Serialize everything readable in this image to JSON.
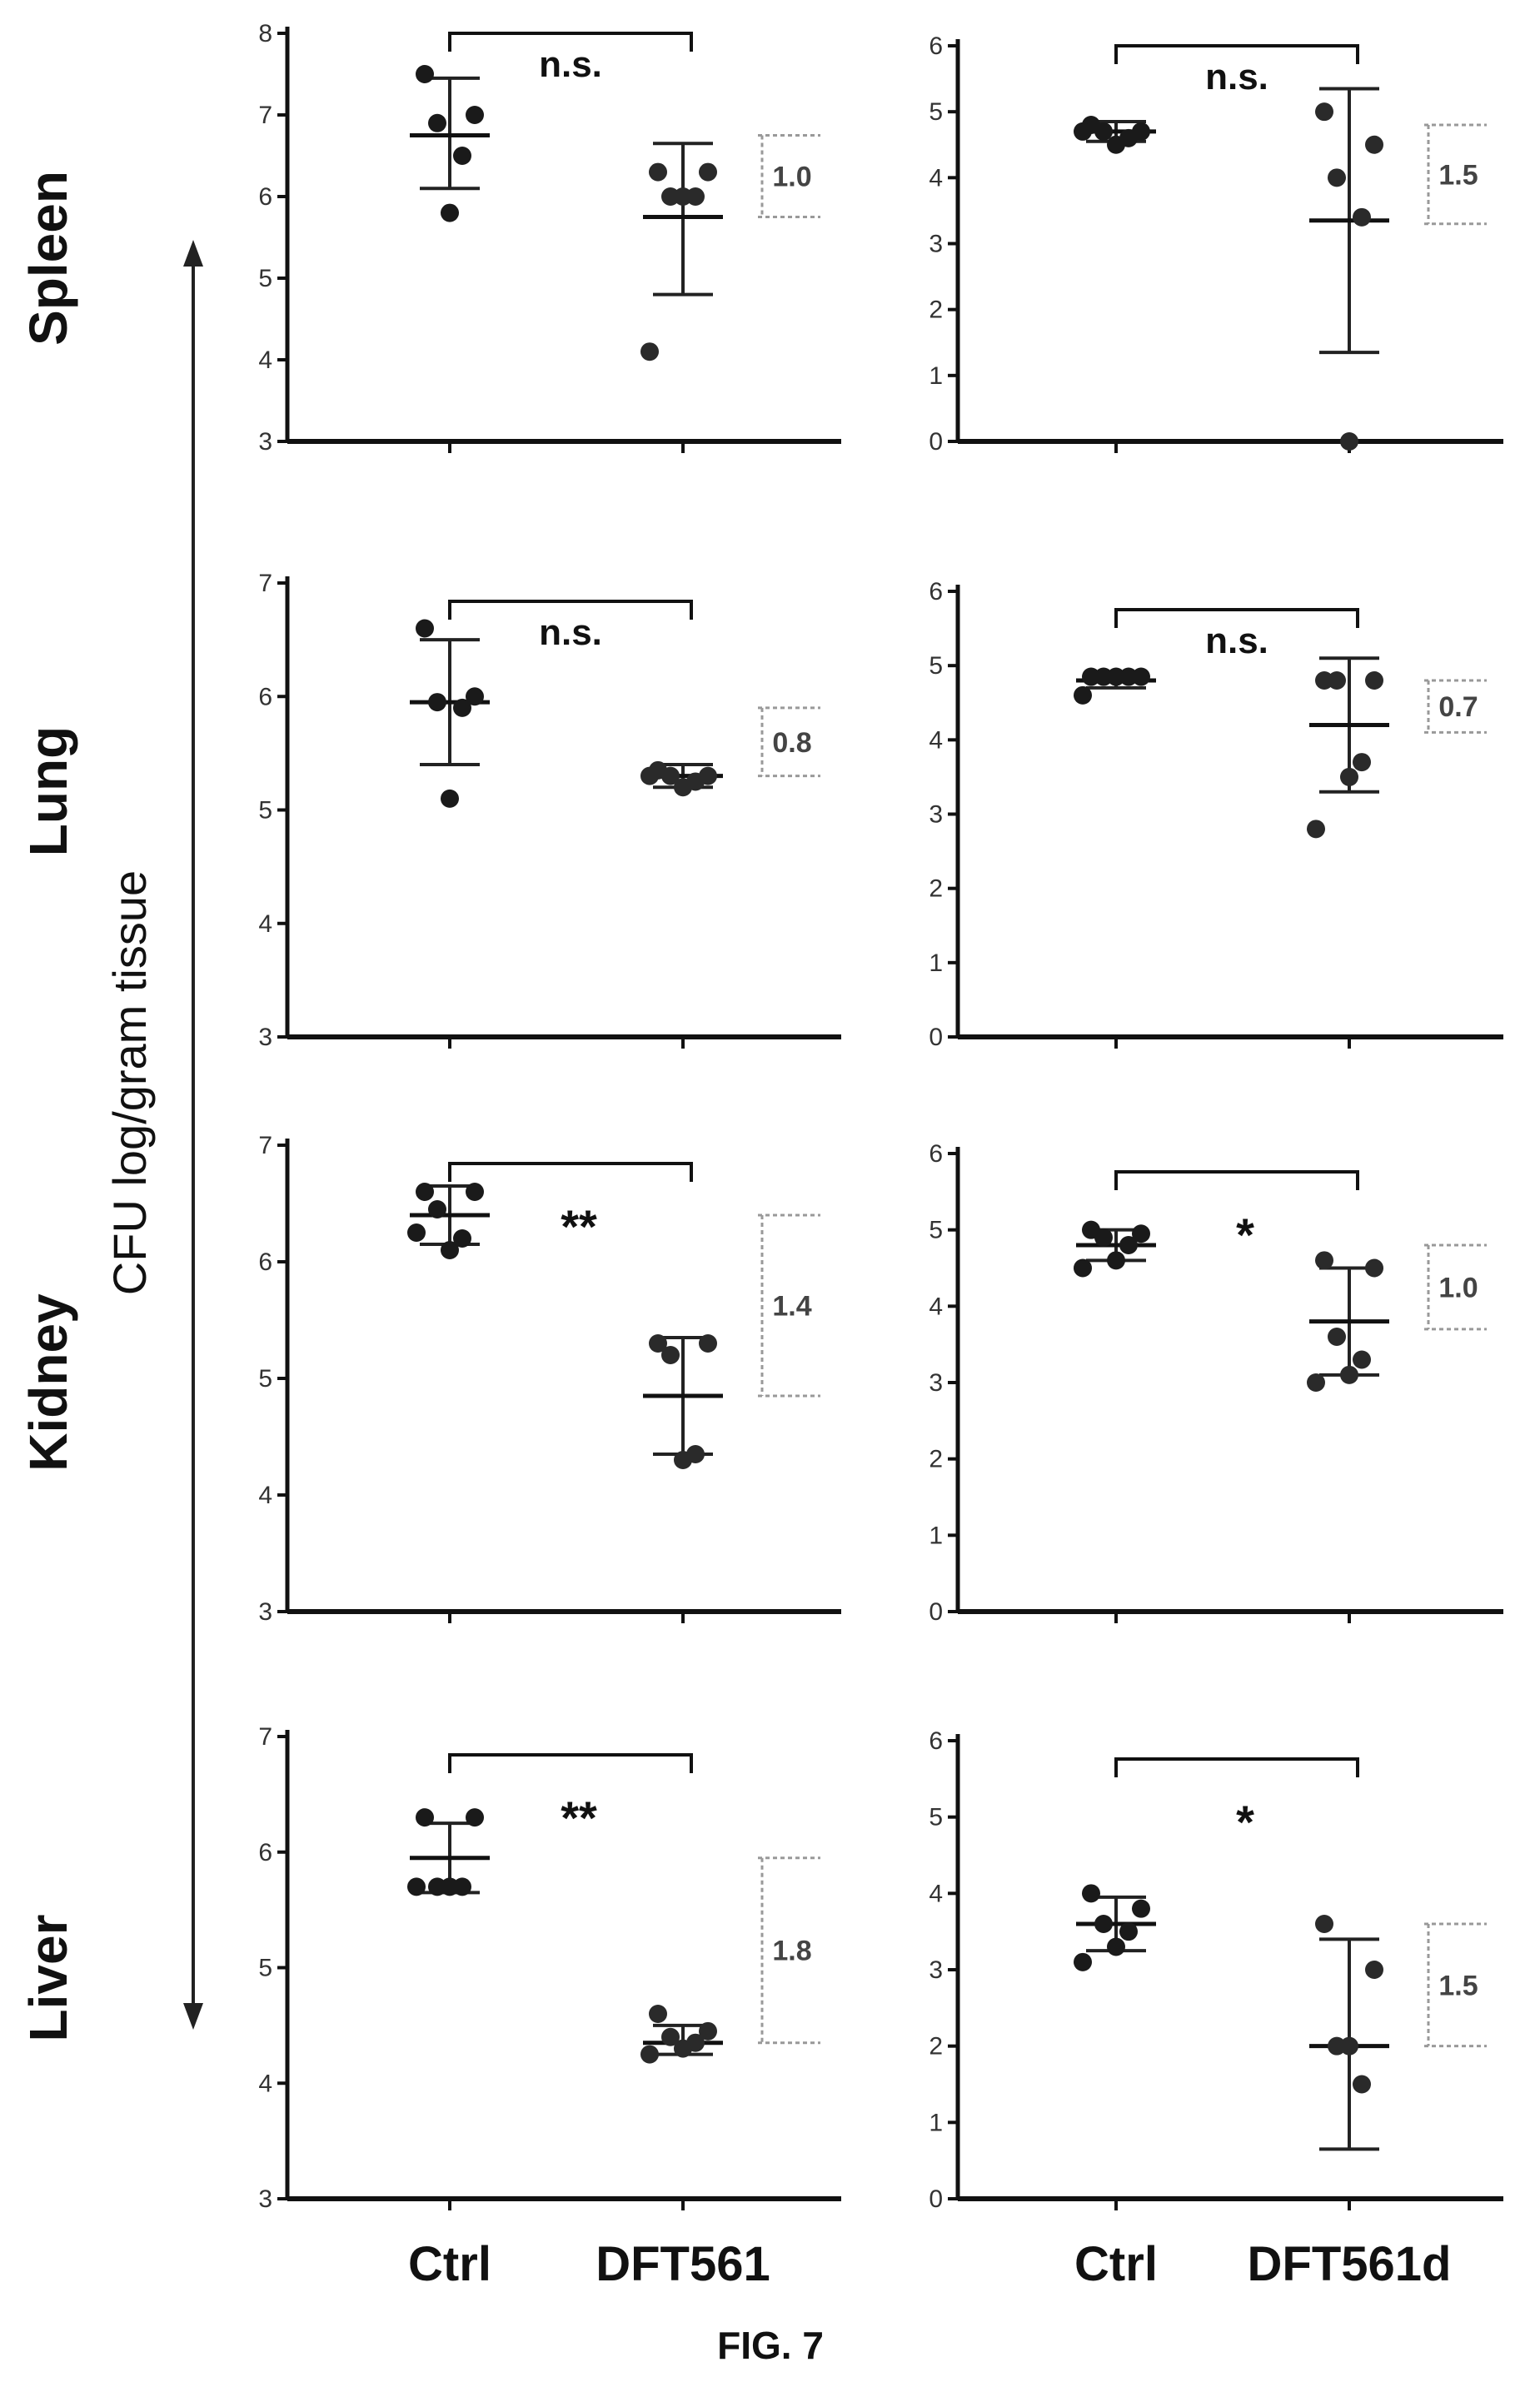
{
  "figure": {
    "caption": "FIG. 7",
    "y_axis_label": "CFU log/gram tissue",
    "organs": [
      "Spleen",
      "Lung",
      "Kidney",
      "Liver"
    ],
    "x_labels": {
      "left": [
        "Ctrl",
        "DFT561"
      ],
      "right": [
        "Ctrl",
        "DFT561d"
      ]
    }
  },
  "chart_data": [
    {
      "type": "scatter",
      "organ": "Spleen",
      "column": "left",
      "categories": [
        "Ctrl",
        "DFT561"
      ],
      "ylim": [
        3,
        8
      ],
      "yticks": [
        3,
        4,
        5,
        6,
        7,
        8
      ],
      "significance": "n.s.",
      "groups": [
        {
          "name": "Ctrl",
          "points": [
            7.5,
            7.0,
            6.9,
            6.5,
            5.8
          ],
          "mean": 6.75,
          "sd_low": 6.1,
          "sd_high": 7.45
        },
        {
          "name": "DFT561",
          "points": [
            6.3,
            6.3,
            6.0,
            6.0,
            6.0,
            4.1
          ],
          "mean": 5.75,
          "sd_low": 4.8,
          "sd_high": 6.65
        }
      ],
      "diff": {
        "label": "1.0",
        "low": 5.75,
        "high": 6.75
      }
    },
    {
      "type": "scatter",
      "organ": "Spleen",
      "column": "right",
      "categories": [
        "Ctrl",
        "DFT561d"
      ],
      "ylim": [
        0,
        6
      ],
      "yticks": [
        0,
        1,
        2,
        3,
        4,
        5,
        6
      ],
      "significance": "n.s.",
      "groups": [
        {
          "name": "Ctrl",
          "points": [
            4.8,
            4.7,
            4.7,
            4.6,
            4.5,
            4.7
          ],
          "mean": 4.7,
          "sd_low": 4.55,
          "sd_high": 4.85
        },
        {
          "name": "DFT561d",
          "points": [
            5.0,
            4.5,
            4.0,
            3.4,
            0.0
          ],
          "mean": 3.35,
          "sd_low": 1.35,
          "sd_high": 5.35
        }
      ],
      "diff": {
        "label": "1.5",
        "low": 3.3,
        "high": 4.8
      }
    },
    {
      "type": "scatter",
      "organ": "Lung",
      "column": "left",
      "categories": [
        "Ctrl",
        "DFT561"
      ],
      "ylim": [
        3,
        7
      ],
      "yticks": [
        3,
        4,
        5,
        6,
        7
      ],
      "significance": "n.s.",
      "groups": [
        {
          "name": "Ctrl",
          "points": [
            6.6,
            6.0,
            5.95,
            5.9,
            5.1
          ],
          "mean": 5.95,
          "sd_low": 5.4,
          "sd_high": 6.5
        },
        {
          "name": "DFT561",
          "points": [
            5.35,
            5.3,
            5.3,
            5.25,
            5.2,
            5.3
          ],
          "mean": 5.3,
          "sd_low": 5.2,
          "sd_high": 5.4
        }
      ],
      "diff": {
        "label": "0.8",
        "low": 5.3,
        "high": 5.9
      }
    },
    {
      "type": "scatter",
      "organ": "Lung",
      "column": "right",
      "categories": [
        "Ctrl",
        "DFT561d"
      ],
      "ylim": [
        0,
        6
      ],
      "yticks": [
        0,
        1,
        2,
        3,
        4,
        5,
        6
      ],
      "significance": "n.s.",
      "groups": [
        {
          "name": "Ctrl",
          "points": [
            4.85,
            4.85,
            4.85,
            4.85,
            4.85,
            4.6
          ],
          "mean": 4.8,
          "sd_low": 4.7,
          "sd_high": 4.9
        },
        {
          "name": "DFT561d",
          "points": [
            4.8,
            4.8,
            4.8,
            3.7,
            3.5,
            2.8
          ],
          "mean": 4.2,
          "sd_low": 3.3,
          "sd_high": 5.1
        },
        {
          "name": "",
          "points": [],
          "mean": null,
          "sd_low": null,
          "sd_high": null
        }
      ],
      "diff": {
        "label": "0.7",
        "low": 4.1,
        "high": 4.8
      }
    },
    {
      "type": "scatter",
      "organ": "Kidney",
      "column": "left",
      "categories": [
        "Ctrl",
        "DFT561"
      ],
      "ylim": [
        3,
        7
      ],
      "yticks": [
        3,
        4,
        5,
        6,
        7
      ],
      "significance": "**",
      "groups": [
        {
          "name": "Ctrl",
          "points": [
            6.6,
            6.6,
            6.45,
            6.2,
            6.1,
            6.25
          ],
          "mean": 6.4,
          "sd_low": 6.15,
          "sd_high": 6.65
        },
        {
          "name": "DFT561",
          "points": [
            5.3,
            5.3,
            5.2,
            4.35,
            4.3
          ],
          "mean": 4.85,
          "sd_low": 4.35,
          "sd_high": 5.35
        }
      ],
      "diff": {
        "label": "1.4",
        "low": 4.85,
        "high": 6.4
      }
    },
    {
      "type": "scatter",
      "organ": "Kidney",
      "column": "right",
      "categories": [
        "Ctrl",
        "DFT561d"
      ],
      "ylim": [
        0,
        6
      ],
      "yticks": [
        0,
        1,
        2,
        3,
        4,
        5,
        6
      ],
      "significance": "*",
      "groups": [
        {
          "name": "Ctrl",
          "points": [
            5.0,
            4.95,
            4.9,
            4.8,
            4.6,
            4.5
          ],
          "mean": 4.8,
          "sd_low": 4.6,
          "sd_high": 5.0
        },
        {
          "name": "DFT561d",
          "points": [
            4.6,
            4.5,
            3.6,
            3.3,
            3.1,
            3.0
          ],
          "mean": 3.8,
          "sd_low": 3.1,
          "sd_high": 4.5
        }
      ],
      "diff": {
        "label": "1.0",
        "low": 3.7,
        "high": 4.8
      }
    },
    {
      "type": "scatter",
      "organ": "Liver",
      "column": "left",
      "categories": [
        "Ctrl",
        "DFT561"
      ],
      "ylim": [
        3,
        7
      ],
      "yticks": [
        3,
        4,
        5,
        6,
        7
      ],
      "significance": "**",
      "groups": [
        {
          "name": "Ctrl",
          "points": [
            6.3,
            6.3,
            5.7,
            5.7,
            5.7,
            5.7
          ],
          "mean": 5.95,
          "sd_low": 5.65,
          "sd_high": 6.25
        },
        {
          "name": "DFT561",
          "points": [
            4.6,
            4.45,
            4.4,
            4.35,
            4.3,
            4.25
          ],
          "mean": 4.35,
          "sd_low": 4.25,
          "sd_high": 4.5
        }
      ],
      "diff": {
        "label": "1.8",
        "low": 4.35,
        "high": 5.95
      }
    },
    {
      "type": "scatter",
      "organ": "Liver",
      "column": "right",
      "categories": [
        "Ctrl",
        "DFT561d"
      ],
      "ylim": [
        0,
        6
      ],
      "yticks": [
        0,
        1,
        2,
        3,
        4,
        5,
        6
      ],
      "significance": "*",
      "groups": [
        {
          "name": "Ctrl",
          "points": [
            4.0,
            3.8,
            3.6,
            3.5,
            3.3,
            3.1
          ],
          "mean": 3.6,
          "sd_low": 3.25,
          "sd_high": 3.95
        },
        {
          "name": "DFT561d",
          "points": [
            3.6,
            3.0,
            2.0,
            1.5,
            2.0
          ],
          "mean": 2.0,
          "sd_low": 0.65,
          "sd_high": 3.4
        }
      ],
      "diff": {
        "label": "1.5",
        "low": 2.0,
        "high": 3.6
      }
    }
  ]
}
